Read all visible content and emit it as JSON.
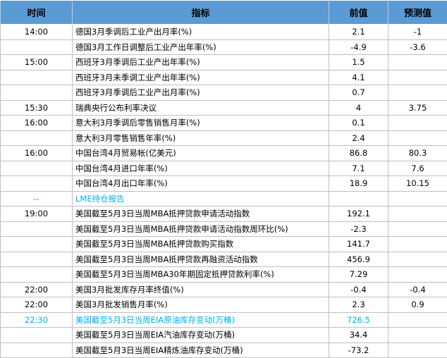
{
  "colors": {
    "header_bg": "#5b9bd5",
    "highlight_text": "#00b0f0",
    "border": "#bfbfbf"
  },
  "header": {
    "time": "时间",
    "indicator": "指标",
    "previous": "前值",
    "forecast": "预测值"
  },
  "rows": [
    {
      "time": "14:00",
      "indicator": "德国3月季调后工业产出月率(%)",
      "previous": "2.1",
      "forecast": "-1"
    },
    {
      "time": "",
      "indicator": "德国3月工作日调整后工业产出年率(%)",
      "previous": "-4.9",
      "forecast": "-3.6"
    },
    {
      "time": "15:00",
      "indicator": "西班牙3月季调后工业产出年率(%)",
      "previous": "1.5",
      "forecast": ""
    },
    {
      "time": "",
      "indicator": "西班牙3月未季调工业产出年率(%)",
      "previous": "4.1",
      "forecast": ""
    },
    {
      "time": "",
      "indicator": "西班牙3月季调后工业产出月率(%)",
      "previous": "0.7",
      "forecast": ""
    },
    {
      "time": "15:30",
      "indicator": "瑞典央行公布利率决议",
      "previous": "4",
      "forecast": "3.75"
    },
    {
      "time": "16:00",
      "indicator": "意大利3月季调后零售销售月率(%)",
      "previous": "0.1",
      "forecast": ""
    },
    {
      "time": "",
      "indicator": "意大利3月零售销售年率(%)",
      "previous": "2.4",
      "forecast": ""
    },
    {
      "time": "16:00",
      "indicator": "中国台湾4月贸易帐(亿美元)",
      "previous": "86.8",
      "forecast": "80.3"
    },
    {
      "time": "",
      "indicator": "中国台湾4月进口年率(%)",
      "previous": "7.1",
      "forecast": "7.6"
    },
    {
      "time": "",
      "indicator": "中国台湾4月出口年率(%)",
      "previous": "18.9",
      "forecast": "10.15"
    },
    {
      "time": "--",
      "indicator": "LME持仓报告",
      "previous": "",
      "forecast": "",
      "highlight": true
    },
    {
      "time": "19:00",
      "indicator": "美国截至5月3日当周MBA抵押贷款申请活动指数",
      "previous": "192.1",
      "forecast": ""
    },
    {
      "time": "",
      "indicator": "美国截至5月3日当周MBA抵押贷款申请活动指数周环比(%)",
      "previous": "-2.3",
      "forecast": ""
    },
    {
      "time": "",
      "indicator": "美国截至5月3日当周MBA抵押贷款购买指数",
      "previous": "141.7",
      "forecast": ""
    },
    {
      "time": "",
      "indicator": "美国截至5月3日当周MBA抵押贷款再融资活动指数",
      "previous": "456.9",
      "forecast": ""
    },
    {
      "time": "",
      "indicator": "美国截至5月3日当周MBA30年期固定抵押贷款利率(%)",
      "previous": "7.29",
      "forecast": ""
    },
    {
      "time": "22:00",
      "indicator": "美国3月批发库存月率终值(%)",
      "previous": "-0.4",
      "forecast": "-0.4"
    },
    {
      "time": "22:00",
      "indicator": "美国3月批发销售月率(%)",
      "previous": "2.3",
      "forecast": "0.9"
    },
    {
      "time": "22:30",
      "indicator": "美国截至5月3日当周EIA原油库存变动(万桶)",
      "previous": "726.5",
      "forecast": "",
      "highlight": true
    },
    {
      "time": "",
      "indicator": "美国截至5月3日当周EIA汽油库存变动(万桶)",
      "previous": "34.4",
      "forecast": ""
    },
    {
      "time": "",
      "indicator": "美国截至5月3日当周EIA精炼油库存变动(万桶)",
      "previous": "-73.2",
      "forecast": ""
    }
  ]
}
